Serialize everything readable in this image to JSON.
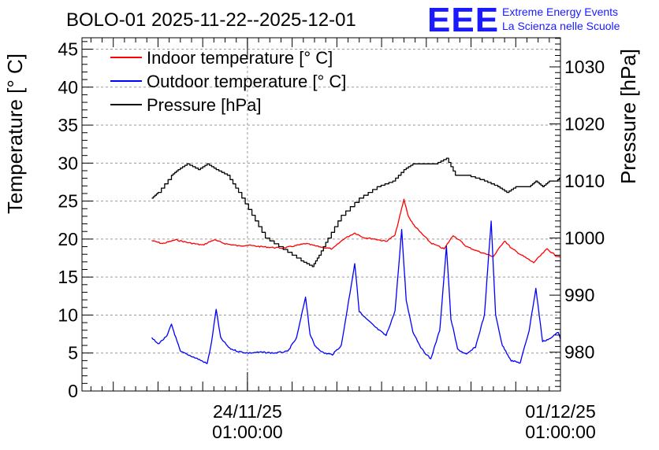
{
  "chart_data": {
    "type": "line",
    "title": "BOLO-01 2025-11-22--2025-12-01",
    "ylabel_left": "Temperature [° C]",
    "ylabel_right": "Pressure [hPa]",
    "ylim_left": [
      0,
      46.5
    ],
    "ylim_right": [
      973.2,
      1035.1
    ],
    "y_ticks_left": [
      0,
      5,
      10,
      15,
      20,
      25,
      30,
      35,
      40,
      45
    ],
    "y_ticks_right": [
      980,
      990,
      1000,
      1010,
      1020,
      1030
    ],
    "x_range_days": [
      -3.7,
      7.0
    ],
    "x_ticks": [
      {
        "day": 0,
        "date": "24/11/25",
        "time": "01:00:00"
      },
      {
        "day": 7,
        "date": "01/12/25",
        "time": "01:00:00"
      }
    ],
    "grid": true,
    "legend_position": "top-left",
    "series": [
      {
        "name": "Indoor temperature [° C]",
        "color": "#ff0000",
        "axis": "left",
        "x": [
          -2.14,
          -1.9,
          -1.6,
          -1.3,
          -1.0,
          -0.75,
          -0.5,
          -0.2,
          0.0,
          0.3,
          0.8,
          1.3,
          1.6,
          1.9,
          2.15,
          2.4,
          2.6,
          2.85,
          3.1,
          3.3,
          3.5,
          3.6,
          3.7,
          3.85,
          4.1,
          4.4,
          4.6,
          4.75,
          4.9,
          5.2,
          5.5,
          5.75,
          5.9,
          6.1,
          6.4,
          6.7,
          6.9,
          7.05
        ],
        "y": [
          19.8,
          19.4,
          19.9,
          19.5,
          19.2,
          19.9,
          19.4,
          19.1,
          19.2,
          19.0,
          18.8,
          19.4,
          19.0,
          18.7,
          20.0,
          20.8,
          20.2,
          20.0,
          19.7,
          20.5,
          25.2,
          23.0,
          22.0,
          21.0,
          19.5,
          18.7,
          20.5,
          19.8,
          19.0,
          18.3,
          17.7,
          19.8,
          18.8,
          18.0,
          16.9,
          18.7,
          17.8,
          17.6
        ]
      },
      {
        "name": "Outdoor temperature [° C]",
        "color": "#0000ff",
        "axis": "left",
        "x": [
          -2.14,
          -2.0,
          -1.8,
          -1.7,
          -1.5,
          -1.3,
          -1.1,
          -0.9,
          -0.8,
          -0.7,
          -0.6,
          -0.4,
          -0.2,
          0.0,
          0.3,
          0.6,
          0.9,
          1.1,
          1.3,
          1.4,
          1.5,
          1.7,
          1.9,
          2.1,
          2.4,
          2.5,
          2.6,
          2.9,
          3.1,
          3.3,
          3.45,
          3.55,
          3.7,
          3.9,
          4.1,
          4.3,
          4.45,
          4.55,
          4.7,
          4.9,
          5.1,
          5.3,
          5.45,
          5.55,
          5.7,
          5.9,
          6.1,
          6.3,
          6.45,
          6.6,
          6.8,
          6.95,
          7.05
        ],
        "y": [
          7.0,
          6.2,
          7.2,
          8.8,
          5.2,
          4.7,
          4.2,
          3.6,
          6.5,
          10.8,
          7.0,
          5.6,
          5.2,
          5.0,
          5.1,
          5.0,
          5.2,
          7.0,
          12.4,
          7.5,
          6.0,
          5.0,
          4.8,
          6.0,
          16.8,
          10.5,
          9.8,
          8.2,
          7.3,
          10.5,
          21.2,
          12.0,
          7.8,
          5.5,
          4.2,
          8.0,
          19.0,
          9.5,
          5.5,
          4.8,
          5.8,
          10.0,
          22.4,
          10.0,
          6.0,
          4.0,
          3.7,
          8.0,
          13.5,
          6.5,
          7.0,
          7.8,
          6.0
        ]
      },
      {
        "name": "Pressure [hPa]",
        "color": "#000000",
        "axis": "right",
        "x": [
          -2.14,
          -2.0,
          -1.7,
          -1.55,
          -1.35,
          -1.1,
          -0.9,
          -0.7,
          -0.45,
          -0.2,
          0.1,
          0.4,
          0.8,
          1.2,
          1.45,
          1.6,
          1.8,
          2.1,
          2.5,
          2.9,
          3.25,
          3.5,
          3.7,
          3.9,
          4.2,
          4.45,
          4.65,
          4.9,
          5.3,
          5.6,
          5.8,
          6.0,
          6.3,
          6.45,
          6.6,
          6.75,
          6.9,
          7.05
        ],
        "y": [
          1007,
          1008,
          1011,
          1012,
          1013,
          1012,
          1013,
          1012,
          1011,
          1008,
          1004,
          1000,
          998,
          996,
          995,
          997,
          1000,
          1004,
          1007,
          1009,
          1010,
          1012,
          1013,
          1013,
          1013,
          1014,
          1011,
          1011,
          1010,
          1009,
          1008,
          1009,
          1009,
          1010,
          1009,
          1010,
          1010,
          1011
        ]
      }
    ]
  },
  "logo": {
    "mark": "EEE",
    "line1": "Extreme Energy Events",
    "line2": "La Scienza nelle Scuole",
    "color": "#1a1aff"
  }
}
